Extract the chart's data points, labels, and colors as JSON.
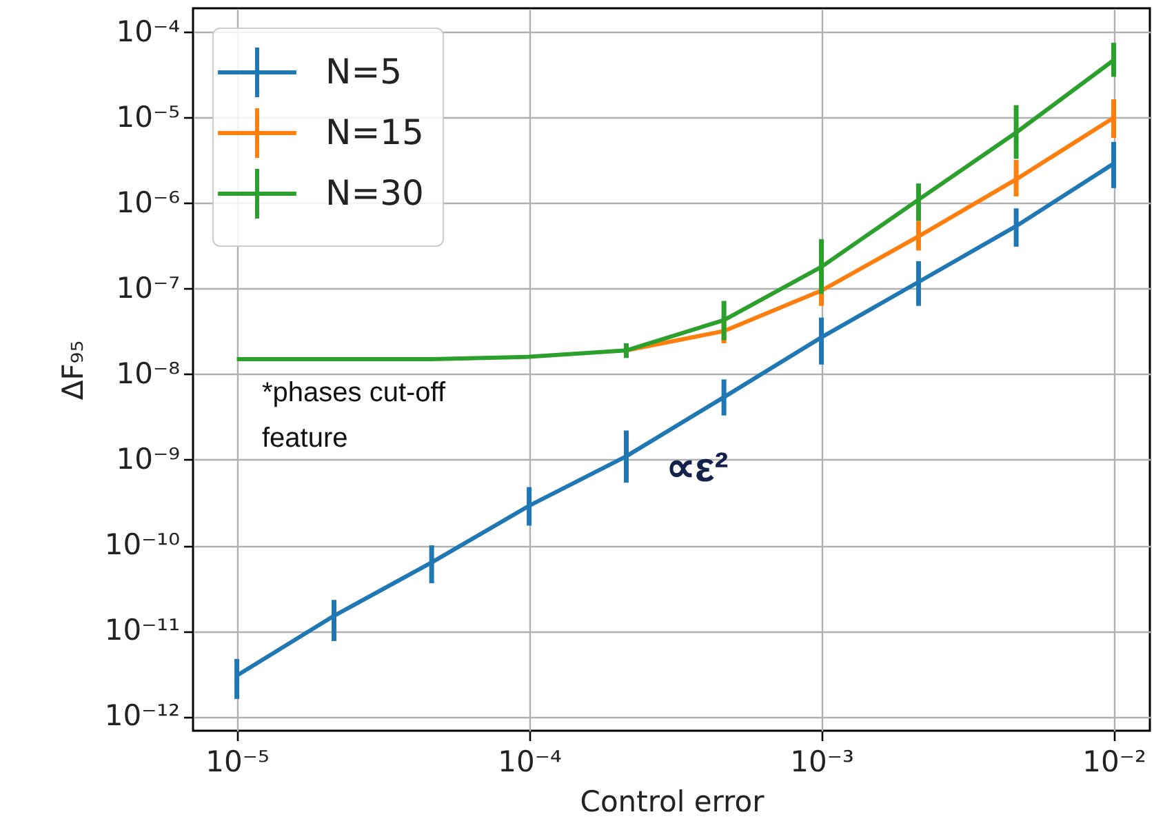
{
  "chart_data": {
    "type": "line",
    "xlabel": "Control error",
    "ylabel": "ΔF₉₅",
    "x": [
      1e-05,
      2.15e-05,
      4.64e-05,
      0.0001,
      0.000215,
      0.000464,
      0.001,
      0.00215,
      0.00464,
      0.01
    ],
    "series": [
      {
        "name": "N=5",
        "color": "#1f77b4",
        "values": [
          3e-12,
          1.5e-11,
          6.3e-11,
          2.9e-10,
          1.1e-09,
          5.4e-09,
          2.7e-08,
          1.2e-07,
          5.4e-07,
          2.9e-06
        ],
        "errors": [
          [
            1.6e-12,
            4.7e-12
          ],
          [
            7.6e-12,
            2.3e-11
          ],
          [
            3.6e-11,
            1e-10
          ],
          [
            1.7e-10,
            4.8e-10
          ],
          [
            5.4e-10,
            2.2e-09
          ],
          [
            3.3e-09,
            8.7e-09
          ],
          [
            1.3e-08,
            4.6e-08
          ],
          [
            6.3e-08,
            2.1e-07
          ],
          [
            3.1e-07,
            8.7e-07
          ],
          [
            1.5e-06,
            5.2e-06
          ]
        ]
      },
      {
        "name": "N=15",
        "color": "#ff7f0e",
        "values": [
          null,
          null,
          null,
          null,
          1.9e-08,
          3.2e-08,
          9.5e-08,
          4.1e-07,
          1.9e-06,
          1e-05
        ],
        "errors": [
          null,
          null,
          null,
          null,
          null,
          [
            2.3e-08,
            4.1e-08
          ],
          [
            6.3e-08,
            1.35e-07
          ],
          [
            2.8e-07,
            6.2e-07
          ],
          [
            1.2e-06,
            3.2e-06
          ],
          [
            5.8e-06,
            1.64e-05
          ]
        ]
      },
      {
        "name": "N=30",
        "color": "#2ca02c",
        "values": [
          1.5e-08,
          1.5e-08,
          1.5e-08,
          1.6e-08,
          1.9e-08,
          4.3e-08,
          1.8e-07,
          1.1e-06,
          6.7e-06,
          4.7e-05
        ],
        "errors": [
          null,
          null,
          null,
          null,
          [
            1.55e-08,
            2.3e-08
          ],
          [
            2.5e-08,
            7.2e-08
          ],
          [
            8.7e-08,
            3.8e-07
          ],
          [
            6.2e-07,
            1.7e-06
          ],
          [
            3.3e-06,
            1.4e-05
          ],
          [
            3e-05,
            7.5e-05
          ]
        ]
      }
    ],
    "xlim": [
      7.08e-06,
      0.0133
    ],
    "ylim": [
      6.8e-13,
      0.00019
    ],
    "xticks": [
      {
        "value": 1e-05,
        "label": "10⁻⁵"
      },
      {
        "value": 0.0001,
        "label": "10⁻⁴"
      },
      {
        "value": 0.001,
        "label": "10⁻³"
      },
      {
        "value": 0.01,
        "label": "10⁻²"
      }
    ],
    "yticks": [
      {
        "value": 1e-12,
        "label": "10⁻¹²"
      },
      {
        "value": 1e-11,
        "label": "10⁻¹¹"
      },
      {
        "value": 1e-10,
        "label": "10⁻¹⁰"
      },
      {
        "value": 1e-09,
        "label": "10⁻⁹"
      },
      {
        "value": 1e-08,
        "label": "10⁻⁸"
      },
      {
        "value": 1e-07,
        "label": "10⁻⁷"
      },
      {
        "value": 1e-06,
        "label": "10⁻⁶"
      },
      {
        "value": 1e-05,
        "label": "10⁻⁵"
      },
      {
        "value": 0.0001,
        "label": "10⁻⁴"
      }
    ],
    "log": "xy",
    "grid": true,
    "legend": "top left",
    "marker": "none",
    "line_style": "solid",
    "annotations": [
      "*phases cut-off feature",
      "∝ε²"
    ]
  }
}
